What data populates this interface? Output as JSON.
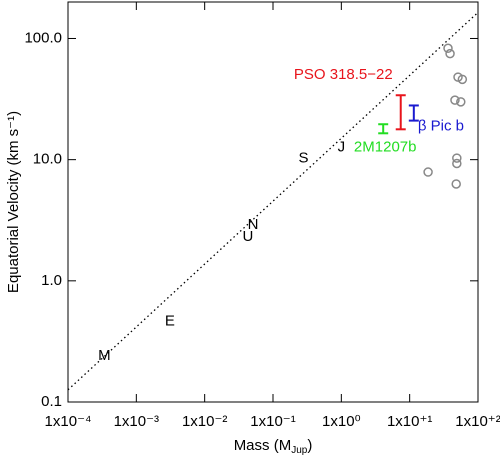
{
  "chart_data": {
    "type": "scatter",
    "log_x": true,
    "log_y": true,
    "xlabel": [
      "Mass (M",
      "Jup",
      ")"
    ],
    "ylabel": "Equatorial Velocity (km s⁻¹)",
    "xlim": [
      0.0001,
      100
    ],
    "ylim": [
      0.1,
      200
    ],
    "xticks": [
      {
        "value": 0.0001,
        "label": "1x10⁻⁴"
      },
      {
        "value": 0.001,
        "label": "1x10⁻³"
      },
      {
        "value": 0.01,
        "label": "1x10⁻²"
      },
      {
        "value": 0.1,
        "label": "1x10⁻¹"
      },
      {
        "value": 1,
        "label": "1x10⁰"
      },
      {
        "value": 10,
        "label": "1x10⁺¹"
      },
      {
        "value": 100,
        "label": "1x10⁺²"
      }
    ],
    "yticks": [
      0.1,
      {
        "value": 1,
        "label": "1.0"
      },
      {
        "value": 10,
        "label": "10.0"
      },
      {
        "value": 100,
        "label": "100.0"
      }
    ],
    "planets": {
      "labels": [
        "M",
        "E",
        "U",
        "N",
        "S",
        "J"
      ],
      "x": [
        0.00034,
        0.0031,
        0.043,
        0.051,
        0.28,
        1.0
      ],
      "y": [
        0.24,
        0.46,
        2.3,
        2.9,
        10.2,
        12.6
      ]
    },
    "trend": {
      "color": "#000000",
      "x": [
        0.0001,
        100
      ],
      "y": [
        0.126,
        164
      ]
    },
    "error_bars": [
      {
        "name": "PSO 318.5−22",
        "color": "#e8141c",
        "x": 7.4,
        "low": 17.8,
        "high": 34
      },
      {
        "name": "β Pic b",
        "color": "#1a1ad0",
        "x": 11.5,
        "low": 21,
        "high": 28
      },
      {
        "name": "2M1207b",
        "color": "#22dd22",
        "x": 4.1,
        "low": 16.5,
        "high": 19.6
      }
    ],
    "others": {
      "color": "#888888",
      "x": [
        36.4,
        39,
        51,
        59,
        46,
        56,
        18.6,
        49,
        49,
        48
      ],
      "y": [
        83,
        75,
        48,
        46,
        31,
        30,
        7.9,
        10.3,
        9.3,
        6.3
      ]
    }
  }
}
